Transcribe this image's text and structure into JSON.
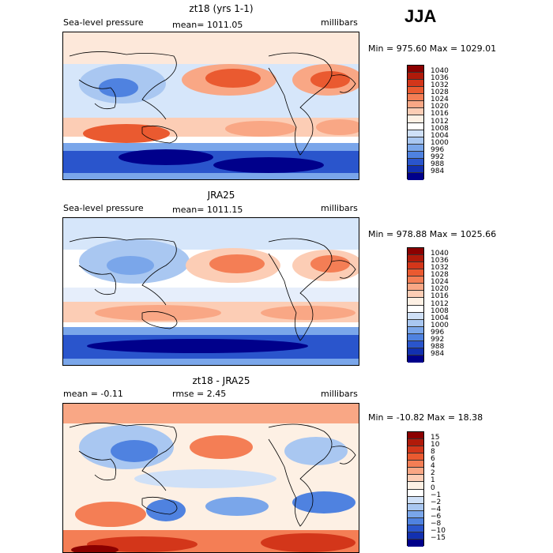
{
  "season": "JJA",
  "panels": [
    {
      "id": "model",
      "title": "zt18 (yrs 1-1)",
      "left_label": "Sea-level pressure",
      "center_label": "mean= 1011.05",
      "right_label": "millibars",
      "minmax": "Min = 975.60 Max = 1029.01",
      "colorbar": {
        "labels": [
          "1040",
          "1036",
          "1032",
          "1028",
          "1024",
          "1020",
          "1016",
          "1012",
          "1008",
          "1004",
          "1000",
          "996",
          "992",
          "988",
          "984"
        ],
        "colors": [
          "#8b0000",
          "#b01a0a",
          "#d3361a",
          "#ea5a30",
          "#f47e55",
          "#f9a785",
          "#fccdb5",
          "#fdf0e4",
          "#ffffff",
          "#cfe0f7",
          "#a9c7f1",
          "#7aa6ea",
          "#4f82e0",
          "#2a55cc",
          "#1230b0",
          "#00008b"
        ]
      }
    },
    {
      "id": "obs",
      "title": "JRA25",
      "left_label": "Sea-level pressure",
      "center_label": "mean= 1011.15",
      "right_label": "millibars",
      "minmax": "Min = 978.88 Max = 1025.66",
      "colorbar": {
        "labels": [
          "1040",
          "1036",
          "1032",
          "1028",
          "1024",
          "1020",
          "1016",
          "1012",
          "1008",
          "1004",
          "1000",
          "996",
          "992",
          "988",
          "984"
        ],
        "colors": [
          "#8b0000",
          "#b01a0a",
          "#d3361a",
          "#ea5a30",
          "#f47e55",
          "#f9a785",
          "#fccdb5",
          "#fdf0e4",
          "#ffffff",
          "#cfe0f7",
          "#a9c7f1",
          "#7aa6ea",
          "#4f82e0",
          "#2a55cc",
          "#1230b0",
          "#00008b"
        ]
      }
    },
    {
      "id": "diff",
      "title": "zt18 - JRA25",
      "left_label": "mean =  -0.11",
      "center_label": "rmse =  2.45",
      "right_label": "millibars",
      "minmax": "Min = -10.82 Max =  18.38",
      "colorbar": {
        "labels": [
          "15",
          "10",
          "8",
          "6",
          "4",
          "2",
          "1",
          "0",
          "−1",
          "−2",
          "−4",
          "−6",
          "−8",
          "−10",
          "−15"
        ],
        "colors": [
          "#8b0000",
          "#b01a0a",
          "#d3361a",
          "#ea5a30",
          "#f47e55",
          "#f9a785",
          "#fccdb5",
          "#fdf0e4",
          "#ffffff",
          "#cfe0f7",
          "#a9c7f1",
          "#7aa6ea",
          "#4f82e0",
          "#2a55cc",
          "#1230b0",
          "#00008b"
        ]
      }
    }
  ]
}
